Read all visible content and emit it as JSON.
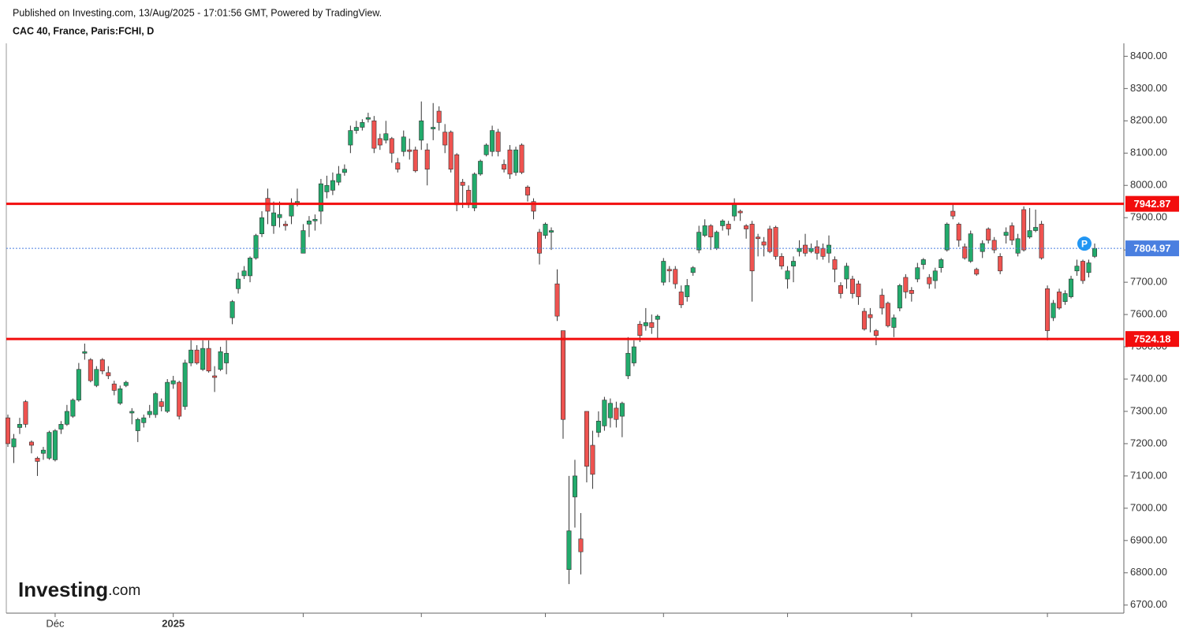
{
  "chart_data": {
    "type": "candlestick",
    "title": "Published on Investing.com, 13/Aug/2025 - 17:01:56 GMT, Powered by TradingView.",
    "subtitle": "CAC 40, France, Paris:FCHI, D",
    "watermark": {
      "brand": "Investing",
      "suffix": ".com"
    },
    "badge": "P",
    "up_color": "#22ab6c",
    "down_color": "#ef5350",
    "open": [
      7280,
      7190,
      7250,
      7330,
      7205,
      7155,
      7170,
      7155,
      7150,
      7245,
      7260,
      7285,
      7335,
      7480,
      7460,
      7380,
      7460,
      7420,
      7385,
      7325,
      7380,
      7295,
      7240,
      7265,
      7290,
      7290,
      7330,
      7300,
      7385,
      7390,
      7315,
      7450,
      7490,
      7430,
      7495,
      7410,
      7430,
      7450,
      7590,
      7680,
      7720,
      7720,
      7775,
      7850,
      7960,
      7875,
      7900,
      7880,
      7905,
      7945,
      7790,
      7880,
      7890,
      7920,
      7980,
      7985,
      8010,
      8040,
      8125,
      8170,
      8180,
      8205,
      8200,
      8145,
      8140,
      8145,
      8070,
      8105,
      8110,
      8110,
      8140,
      8110,
      8175,
      8230,
      8165,
      8165,
      8095,
      8010,
      7985,
      7930,
      8035,
      8095,
      8105,
      8165,
      8065,
      8110,
      8040,
      8125,
      7995,
      7950,
      7855,
      7845,
      7855,
      7695,
      7550,
      6810,
      7035,
      6905,
      7300,
      7195,
      7235,
      7255,
      7280,
      7310,
      7285,
      7410,
      7450,
      7570,
      7565,
      7575,
      7585,
      7700,
      7740,
      7740,
      7670,
      7655,
      7730,
      7800,
      7845,
      7875,
      7805,
      7875,
      7880,
      7905,
      7920,
      7875,
      7880,
      7840,
      7825,
      7865,
      7870,
      7780,
      7710,
      7750,
      7795,
      7815,
      7795,
      7810,
      7805,
      7790,
      7770,
      7690,
      7710,
      7710,
      7695,
      7610,
      7600,
      7550,
      7660,
      7635,
      7560,
      7620,
      7715,
      7675,
      7710,
      7755,
      7715,
      7705,
      7745,
      7800,
      7920,
      7880,
      7810,
      7765,
      7740,
      7795,
      7865,
      7830,
      7780,
      7845,
      7875,
      7790,
      7925,
      7840,
      7860,
      7880,
      7680,
      7590,
      7670,
      7640,
      7655,
      7735,
      7765,
      7730,
      7780
    ],
    "high": [
      7290,
      7230,
      7280,
      7335,
      7210,
      7160,
      7190,
      7240,
      7245,
      7270,
      7320,
      7340,
      7450,
      7510,
      7465,
      7440,
      7465,
      7440,
      7395,
      7380,
      7395,
      7310,
      7280,
      7290,
      7320,
      7360,
      7340,
      7400,
      7410,
      7395,
      7460,
      7520,
      7505,
      7520,
      7520,
      7440,
      7500,
      7520,
      7645,
      7730,
      7750,
      7780,
      7850,
      7920,
      7990,
      7950,
      7950,
      7890,
      7960,
      7990,
      7880,
      7905,
      7910,
      8020,
      8030,
      8040,
      8060,
      8065,
      8185,
      8200,
      8205,
      8225,
      8215,
      8160,
      8200,
      8150,
      8085,
      8170,
      8145,
      8120,
      8260,
      8130,
      8255,
      8245,
      8190,
      8170,
      8100,
      8020,
      8000,
      8040,
      8080,
      8130,
      8185,
      8175,
      8080,
      8125,
      8120,
      8130,
      8000,
      7960,
      7865,
      7885,
      7870,
      7740,
      7550,
      7100,
      7150,
      6985,
      7300,
      7240,
      7300,
      7345,
      7340,
      7330,
      7330,
      7530,
      7520,
      7580,
      7620,
      7600,
      7600,
      7775,
      7750,
      7750,
      7690,
      7710,
      7750,
      7875,
      7895,
      7880,
      7860,
      7895,
      7890,
      7960,
      7925,
      7880,
      7890,
      7850,
      7840,
      7875,
      7875,
      7790,
      7750,
      7780,
      7830,
      7850,
      7820,
      7830,
      7820,
      7845,
      7780,
      7700,
      7760,
      7720,
      7705,
      7620,
      7620,
      7555,
      7680,
      7640,
      7600,
      7695,
      7725,
      7685,
      7760,
      7775,
      7725,
      7745,
      7775,
      7885,
      7940,
      7885,
      7820,
      7860,
      7745,
      7830,
      7870,
      7840,
      7790,
      7870,
      7885,
      7850,
      7935,
      7930,
      7925,
      7890,
      7690,
      7645,
      7680,
      7675,
      7720,
      7770,
      7770,
      7770,
      7820
    ],
    "low": [
      7190,
      7140,
      7230,
      7250,
      7170,
      7100,
      7150,
      7150,
      7145,
      7230,
      7255,
      7280,
      7330,
      7460,
      7390,
      7375,
      7415,
      7400,
      7350,
      7320,
      7375,
      7260,
      7205,
      7250,
      7280,
      7280,
      7300,
      7295,
      7370,
      7275,
      7305,
      7440,
      7445,
      7425,
      7420,
      7360,
      7425,
      7415,
      7570,
      7665,
      7710,
      7700,
      7770,
      7840,
      7880,
      7850,
      7870,
      7860,
      7880,
      7935,
      7790,
      7840,
      7860,
      7880,
      7960,
      7970,
      8000,
      8030,
      8100,
      8160,
      8170,
      8195,
      8100,
      8110,
      8130,
      8070,
      8040,
      8090,
      8080,
      8040,
      8110,
      8000,
      8140,
      8170,
      8100,
      8040,
      7920,
      7930,
      7930,
      7920,
      8030,
      8090,
      8090,
      8090,
      8040,
      8020,
      8030,
      8035,
      7950,
      7895,
      7755,
      7835,
      7800,
      7580,
      7215,
      6765,
      6940,
      6795,
      7080,
      7060,
      7220,
      7240,
      7250,
      7250,
      7220,
      7400,
      7440,
      7515,
      7550,
      7540,
      7525,
      7690,
      7700,
      7680,
      7620,
      7640,
      7720,
      7790,
      7840,
      7800,
      7800,
      7860,
      7845,
      7890,
      7890,
      7835,
      7640,
      7780,
      7780,
      7790,
      7770,
      7740,
      7680,
      7700,
      7780,
      7780,
      7790,
      7770,
      7770,
      7760,
      7700,
      7650,
      7680,
      7650,
      7630,
      7550,
      7545,
      7505,
      7600,
      7560,
      7530,
      7610,
      7650,
      7640,
      7700,
      7740,
      7680,
      7680,
      7730,
      7795,
      7895,
      7810,
      7770,
      7760,
      7720,
      7775,
      7820,
      7790,
      7725,
      7820,
      7815,
      7780,
      7795,
      7835,
      7855,
      7770,
      7520,
      7580,
      7615,
      7630,
      7650,
      7720,
      7695,
      7715,
      7775
    ],
    "close": [
      7200,
      7215,
      7260,
      7260,
      7195,
      7145,
      7180,
      7235,
      7240,
      7260,
      7300,
      7335,
      7430,
      7485,
      7395,
      7430,
      7425,
      7410,
      7365,
      7370,
      7390,
      7300,
      7275,
      7280,
      7300,
      7355,
      7315,
      7390,
      7395,
      7285,
      7450,
      7490,
      7450,
      7495,
      7425,
      7405,
      7485,
      7480,
      7640,
      7710,
      7735,
      7775,
      7845,
      7900,
      7920,
      7915,
      7910,
      7875,
      7945,
      7950,
      7860,
      7890,
      7895,
      8005,
      8000,
      8015,
      8035,
      8050,
      8170,
      8180,
      8195,
      8210,
      8115,
      8125,
      8160,
      8100,
      8050,
      8150,
      8105,
      8045,
      8200,
      8050,
      8180,
      8195,
      8125,
      8050,
      7940,
      8000,
      7940,
      8035,
      8075,
      8125,
      8170,
      8105,
      8050,
      8035,
      8110,
      8040,
      7970,
      7920,
      7790,
      7880,
      7860,
      7595,
      7275,
      6930,
      7100,
      6865,
      7130,
      7105,
      7270,
      7335,
      7325,
      7275,
      7325,
      7480,
      7500,
      7535,
      7575,
      7560,
      7595,
      7765,
      7735,
      7695,
      7630,
      7690,
      7745,
      7855,
      7875,
      7840,
      7855,
      7890,
      7865,
      7945,
      7915,
      7865,
      7735,
      7835,
      7815,
      7795,
      7780,
      7750,
      7735,
      7765,
      7805,
      7790,
      7805,
      7790,
      7780,
      7815,
      7740,
      7665,
      7750,
      7665,
      7655,
      7555,
      7590,
      7535,
      7620,
      7565,
      7590,
      7690,
      7670,
      7665,
      7745,
      7770,
      7695,
      7735,
      7770,
      7880,
      7905,
      7830,
      7775,
      7850,
      7725,
      7820,
      7830,
      7800,
      7735,
      7855,
      7830,
      7835,
      7800,
      7860,
      7870,
      7775,
      7550,
      7635,
      7620,
      7665,
      7710,
      7750,
      7705,
      7760,
      7804.97
    ],
    "price_lines": [
      {
        "value": 7942.87,
        "color": "#f20d0d",
        "style": "solid"
      },
      {
        "value": 7524.18,
        "color": "#f20d0d",
        "style": "solid"
      },
      {
        "value": 7804.97,
        "color": "#4a7fe0",
        "style": "dotted"
      }
    ],
    "ylim": [
      6675,
      8440
    ],
    "yticks": [
      {
        "value": 6700,
        "label": "6700.00"
      },
      {
        "value": 6800,
        "label": "6800.00"
      },
      {
        "value": 6900,
        "label": "6900.00"
      },
      {
        "value": 7000,
        "label": "7000.00"
      },
      {
        "value": 7100,
        "label": "7100.00"
      },
      {
        "value": 7200,
        "label": "7200.00"
      },
      {
        "value": 7300,
        "label": "7300.00"
      },
      {
        "value": 7400,
        "label": "7400.00"
      },
      {
        "value": 7500,
        "label": "7500.00"
      },
      {
        "value": 7600,
        "label": "7600.00"
      },
      {
        "value": 7700,
        "label": "7700.00"
      },
      {
        "value": 7800,
        "label": "7800.00"
      },
      {
        "value": 7900,
        "label": "7900.00"
      },
      {
        "value": 8000,
        "label": "8000.00"
      },
      {
        "value": 8100,
        "label": "8100.00"
      },
      {
        "value": 8200,
        "label": "8200.00"
      },
      {
        "value": 8300,
        "label": "8300.00"
      },
      {
        "value": 8400,
        "label": "8400.00"
      }
    ],
    "xticks": [
      {
        "value": 8,
        "label": "Déc"
      },
      {
        "value": 28,
        "label": "2025"
      },
      {
        "value": 50,
        "label": null
      },
      {
        "value": 70,
        "label": null
      },
      {
        "value": 91,
        "label": null
      },
      {
        "value": 111,
        "label": null
      },
      {
        "value": 132,
        "label": null
      },
      {
        "value": 153,
        "label": null
      },
      {
        "value": 176,
        "label": null
      }
    ],
    "grid": false
  }
}
